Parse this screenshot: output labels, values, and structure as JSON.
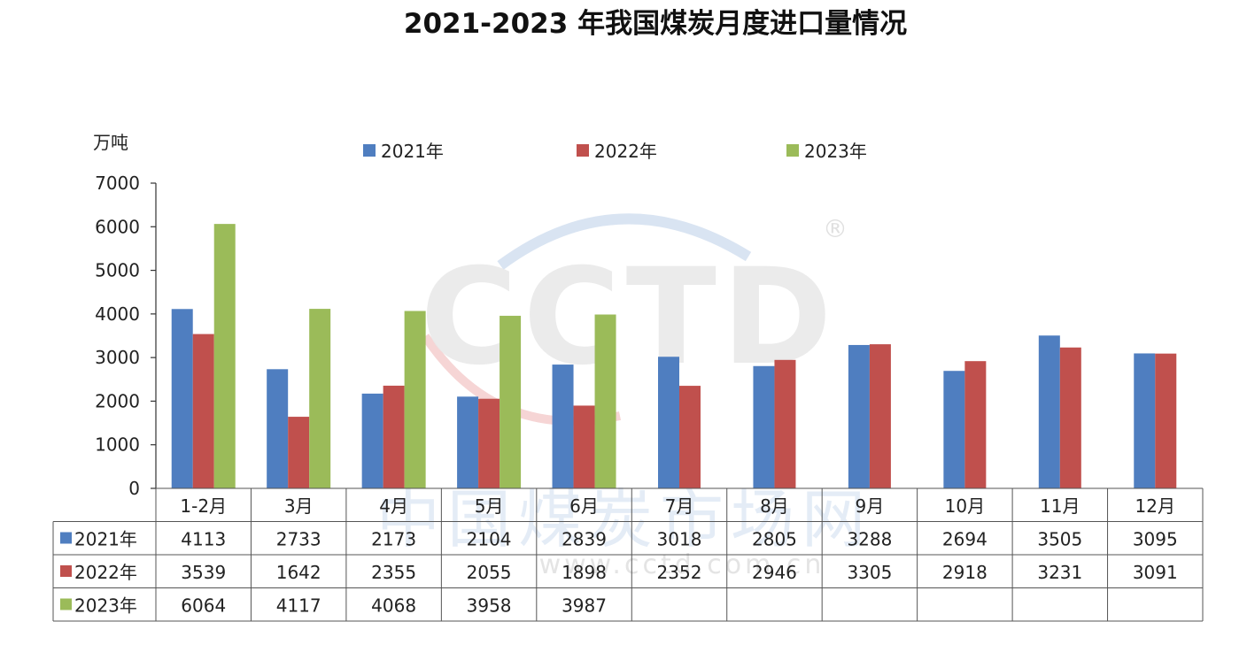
{
  "chart_data": {
    "type": "bar",
    "title": "2021-2023 年我国煤炭月度进口量情况",
    "unit_label": "万吨",
    "categories": [
      "1-2月",
      "3月",
      "4月",
      "5月",
      "6月",
      "7月",
      "8月",
      "9月",
      "10月",
      "11月",
      "12月"
    ],
    "series": [
      {
        "name": "2021年",
        "color": "#4f7ec0",
        "values": [
          4113,
          2733,
          2173,
          2104,
          2839,
          3018,
          2805,
          3288,
          2694,
          3505,
          3095
        ]
      },
      {
        "name": "2022年",
        "color": "#c0504d",
        "values": [
          3539,
          1642,
          2355,
          2055,
          1898,
          2352,
          2946,
          3305,
          2918,
          3231,
          3091
        ]
      },
      {
        "name": "2023年",
        "color": "#9bbb59",
        "values": [
          6064,
          4117,
          4068,
          3958,
          3987,
          null,
          null,
          null,
          null,
          null,
          null
        ]
      }
    ],
    "ylim": [
      0,
      7000
    ],
    "yticks": [
      0,
      1000,
      2000,
      3000,
      4000,
      5000,
      6000,
      7000
    ],
    "legend_position": "top",
    "data_table": true,
    "grid": false
  },
  "watermark": {
    "logo_text": "CCTD",
    "registered_mark": "®",
    "cn_text": "中国煤炭市场网",
    "url_text": "www.cctd.com.cn"
  }
}
